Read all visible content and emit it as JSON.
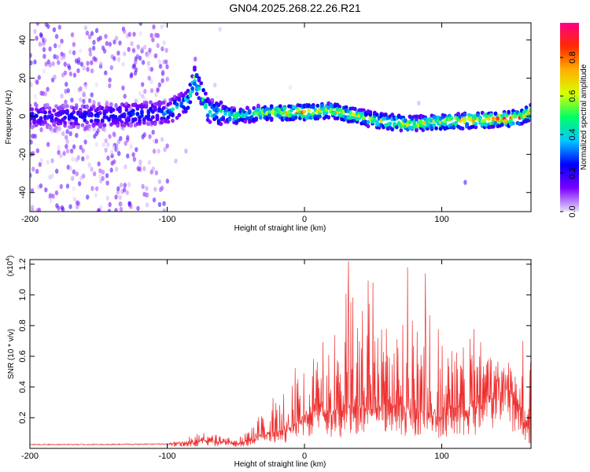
{
  "title": "GN04.2025.268.22.26.R21",
  "chart_data": [
    {
      "type": "heatmap",
      "xlabel": "Height of straight line (km)",
      "ylabel": "Frequency (Hz)",
      "xlim": [
        -200,
        165
      ],
      "ylim": [
        -50,
        49
      ],
      "xticks": [
        -200,
        -100,
        0,
        100
      ],
      "yticks": [
        -40,
        -20,
        0,
        20,
        40
      ],
      "ytick_labels": [
        "-40",
        "-20",
        "0",
        "20",
        "40"
      ],
      "xtick_labels": [
        "-200",
        "-100",
        "0",
        "100"
      ],
      "grid": false,
      "colorbar": {
        "label": "Normalized spectral amplitude",
        "range": [
          0,
          0.98
        ],
        "ticks": [
          0,
          0.2,
          0.4,
          0.6,
          0.8
        ],
        "tick_labels": [
          "0.0",
          "0.2",
          "0.4",
          "0.6",
          "0.8"
        ],
        "colormap": [
          "#e8e0f8",
          "#7a00ff",
          "#0000ff",
          "#00c8ff",
          "#00ff66",
          "#d8ff00",
          "#ffb000",
          "#ff2a00",
          "#ff0088"
        ]
      },
      "ridge": {
        "x": [
          -200,
          -150,
          -100,
          -85,
          -80,
          -70,
          -50,
          -30,
          0,
          20,
          50,
          75,
          100,
          130,
          155,
          165
        ],
        "frequency": [
          0,
          0,
          2,
          8,
          20,
          3,
          0,
          2,
          2,
          3,
          -2,
          -4,
          -3,
          -2,
          -1,
          2
        ],
        "peak_amplitude": [
          0.25,
          0.3,
          0.35,
          0.5,
          0.6,
          0.55,
          0.55,
          0.6,
          0.85,
          0.7,
          0.65,
          0.7,
          0.75,
          0.85,
          0.9,
          0.8
        ]
      }
    },
    {
      "type": "line",
      "xlabel": "Height of straight line (km)",
      "ylabel": "SNR (10 * v/v)",
      "y_multiplier": "(x10",
      "y_multiplier_exp": "4",
      "y_multiplier_close": ")",
      "xlim": [
        -200,
        165
      ],
      "ylim": [
        0,
        1.23
      ],
      "xticks": [
        -200,
        -100,
        0,
        100
      ],
      "xtick_labels": [
        "-200",
        "-100",
        "0",
        "100"
      ],
      "yticks": [
        0.2,
        0.4,
        0.6,
        0.8,
        1.0,
        1.2
      ],
      "ytick_labels": [
        "0.2",
        "0.4",
        "0.6",
        "0.8",
        "1.0",
        "1.2"
      ],
      "grid": false,
      "line_color": "#ee3030",
      "series": [
        {
          "x": [
            -200,
            -150,
            -100,
            -90,
            -80,
            -70,
            -60,
            -50,
            -40,
            -30,
            -20,
            -10,
            0,
            10,
            20,
            30,
            40,
            50,
            60,
            70,
            80,
            90,
            100,
            110,
            120,
            130,
            140,
            150,
            155,
            160,
            165
          ],
          "envelope": [
            0.025,
            0.025,
            0.03,
            0.06,
            0.09,
            0.12,
            0.08,
            0.06,
            0.12,
            0.28,
            0.36,
            0.5,
            0.68,
            0.78,
            0.76,
            1.22,
            1.05,
            1.12,
            1.0,
            1.18,
            1.02,
            1.18,
            0.68,
            0.62,
            0.88,
            0.66,
            0.58,
            0.64,
            0.5,
            0.78,
            0.76
          ],
          "baseline": [
            0.025,
            0.025,
            0.028,
            0.035,
            0.04,
            0.05,
            0.04,
            0.03,
            0.05,
            0.08,
            0.1,
            0.14,
            0.2,
            0.24,
            0.22,
            0.24,
            0.26,
            0.24,
            0.24,
            0.24,
            0.22,
            0.22,
            0.2,
            0.26,
            0.24,
            0.26,
            0.36,
            0.38,
            0.32,
            0.16,
            0.08
          ]
        }
      ],
      "peaks": [
        {
          "x": 32,
          "y": 1.22
        },
        {
          "x": 50,
          "y": 1.08
        },
        {
          "x": 75,
          "y": 1.18
        },
        {
          "x": 88,
          "y": 1.14
        }
      ]
    }
  ]
}
